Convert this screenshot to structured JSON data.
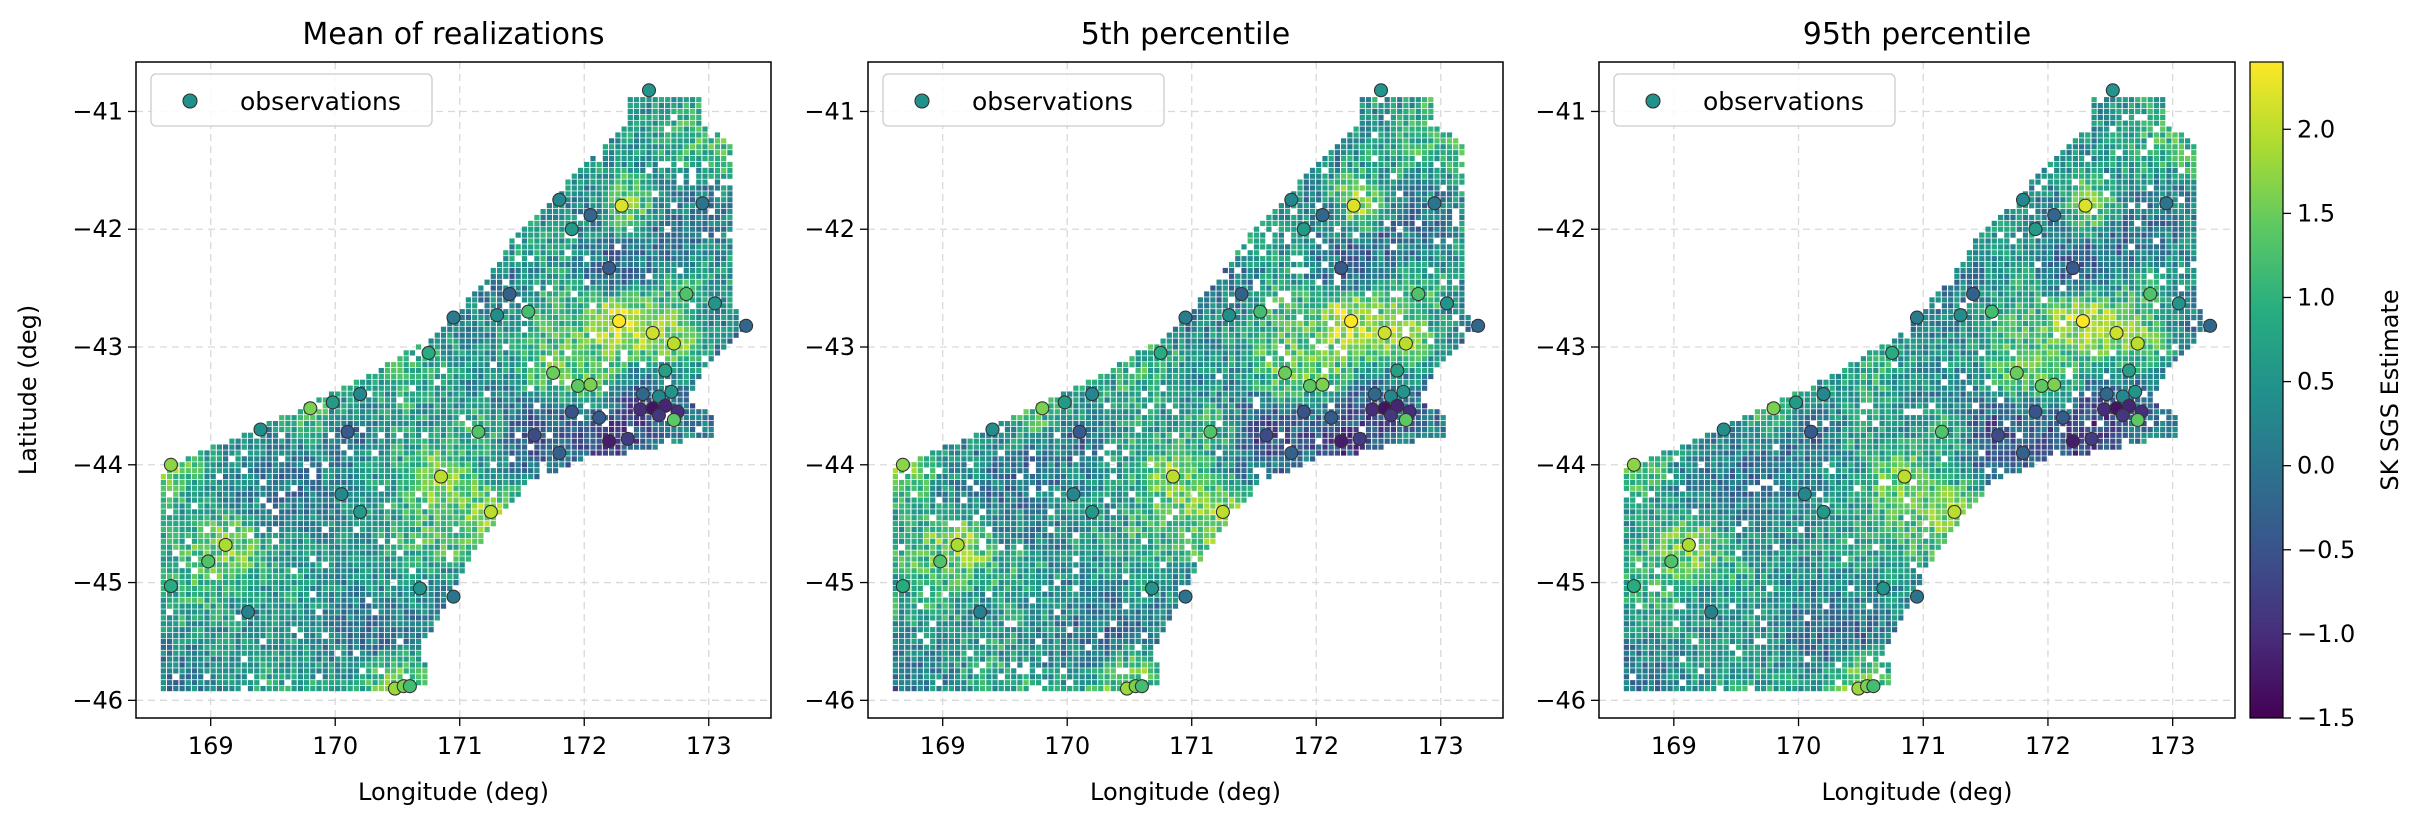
{
  "chart_data": [
    {
      "type": "scatter",
      "title": "Mean of realizations",
      "xlabel": "Longitude (deg)",
      "ylabel": "Latitude (deg)",
      "xlim": [
        168.4,
        173.5
      ],
      "ylim": [
        -46.15,
        -40.58
      ],
      "xticks": [
        "169",
        "170",
        "171",
        "172",
        "173"
      ],
      "yticks": [
        "−41",
        "−42",
        "−43",
        "−44",
        "−45",
        "−46"
      ],
      "grid": true,
      "legend": {
        "label": "observations",
        "placement": "upper-left"
      },
      "seed": 11
    },
    {
      "type": "scatter",
      "title": "5th percentile",
      "xlabel": "Longitude (deg)",
      "ylabel": "",
      "xlim": [
        168.4,
        173.5
      ],
      "ylim": [
        -46.15,
        -40.58
      ],
      "xticks": [
        "169",
        "170",
        "171",
        "172",
        "173"
      ],
      "yticks": [
        "−41",
        "−42",
        "−43",
        "−44",
        "−45",
        "−46"
      ],
      "grid": true,
      "legend": {
        "label": "observations",
        "placement": "upper-left"
      },
      "seed": 23
    },
    {
      "type": "scatter",
      "title": "95th percentile",
      "xlabel": "Longitude (deg)",
      "ylabel": "",
      "xlim": [
        168.4,
        173.5
      ],
      "ylim": [
        -46.15,
        -40.58
      ],
      "xticks": [
        "169",
        "170",
        "171",
        "172",
        "173"
      ],
      "yticks": [
        "−41",
        "−42",
        "−43",
        "−44",
        "−45",
        "−46"
      ],
      "grid": true,
      "legend": {
        "label": "observations",
        "placement": "upper-left"
      },
      "seed": 37
    }
  ],
  "observations": [
    {
      "lon": 172.52,
      "lat": -40.82,
      "v": 0.5
    },
    {
      "lon": 171.8,
      "lat": -41.75,
      "v": 0.3
    },
    {
      "lon": 171.9,
      "lat": -42.0,
      "v": 0.6
    },
    {
      "lon": 172.3,
      "lat": -41.8,
      "v": 2.2
    },
    {
      "lon": 172.05,
      "lat": -41.88,
      "v": -0.2
    },
    {
      "lon": 172.95,
      "lat": -41.78,
      "v": 0.0
    },
    {
      "lon": 172.2,
      "lat": -42.33,
      "v": -0.4
    },
    {
      "lon": 171.4,
      "lat": -42.55,
      "v": -0.3
    },
    {
      "lon": 171.55,
      "lat": -42.7,
      "v": 1.2
    },
    {
      "lon": 171.3,
      "lat": -42.73,
      "v": 0.4
    },
    {
      "lon": 170.95,
      "lat": -42.75,
      "v": 0.1
    },
    {
      "lon": 170.75,
      "lat": -43.05,
      "v": 0.9
    },
    {
      "lon": 172.82,
      "lat": -42.55,
      "v": 1.3
    },
    {
      "lon": 173.05,
      "lat": -42.63,
      "v": 0.5
    },
    {
      "lon": 173.3,
      "lat": -42.82,
      "v": -0.2
    },
    {
      "lon": 172.28,
      "lat": -42.78,
      "v": 2.4
    },
    {
      "lon": 172.55,
      "lat": -42.88,
      "v": 2.1
    },
    {
      "lon": 172.72,
      "lat": -42.97,
      "v": 2.0
    },
    {
      "lon": 172.65,
      "lat": -43.2,
      "v": 0.7
    },
    {
      "lon": 171.75,
      "lat": -43.22,
      "v": 1.5
    },
    {
      "lon": 171.95,
      "lat": -43.33,
      "v": 1.4
    },
    {
      "lon": 172.05,
      "lat": -43.32,
      "v": 1.6
    },
    {
      "lon": 171.9,
      "lat": -43.55,
      "v": -0.5
    },
    {
      "lon": 172.12,
      "lat": -43.6,
      "v": -0.4
    },
    {
      "lon": 172.47,
      "lat": -43.4,
      "v": -0.2
    },
    {
      "lon": 172.6,
      "lat": -43.42,
      "v": 0.3
    },
    {
      "lon": 172.7,
      "lat": -43.38,
      "v": 0.5
    },
    {
      "lon": 172.45,
      "lat": -43.53,
      "v": -1.0
    },
    {
      "lon": 172.55,
      "lat": -43.52,
      "v": -1.3
    },
    {
      "lon": 172.65,
      "lat": -43.5,
      "v": -1.1
    },
    {
      "lon": 172.75,
      "lat": -43.55,
      "v": -1.0
    },
    {
      "lon": 172.6,
      "lat": -43.58,
      "v": -0.9
    },
    {
      "lon": 172.72,
      "lat": -43.62,
      "v": 1.4
    },
    {
      "lon": 172.2,
      "lat": -43.8,
      "v": -1.2
    },
    {
      "lon": 172.35,
      "lat": -43.78,
      "v": -0.8
    },
    {
      "lon": 171.8,
      "lat": -43.9,
      "v": -0.3
    },
    {
      "lon": 171.6,
      "lat": -43.75,
      "v": -0.6
    },
    {
      "lon": 171.15,
      "lat": -43.72,
      "v": 1.3
    },
    {
      "lon": 170.85,
      "lat": -44.1,
      "v": 2.0
    },
    {
      "lon": 171.25,
      "lat": -44.4,
      "v": 2.0
    },
    {
      "lon": 170.1,
      "lat": -43.72,
      "v": -0.4
    },
    {
      "lon": 169.8,
      "lat": -43.52,
      "v": 1.6
    },
    {
      "lon": 169.98,
      "lat": -43.47,
      "v": 0.6
    },
    {
      "lon": 169.4,
      "lat": -43.7,
      "v": 0.4
    },
    {
      "lon": 170.2,
      "lat": -43.4,
      "v": 0.3
    },
    {
      "lon": 170.05,
      "lat": -44.25,
      "v": 0.3
    },
    {
      "lon": 170.2,
      "lat": -44.4,
      "v": 0.6
    },
    {
      "lon": 168.68,
      "lat": -44.0,
      "v": 1.7
    },
    {
      "lon": 169.12,
      "lat": -44.68,
      "v": 1.9
    },
    {
      "lon": 168.98,
      "lat": -44.82,
      "v": 1.3
    },
    {
      "lon": 169.3,
      "lat": -45.25,
      "v": 0.2
    },
    {
      "lon": 168.68,
      "lat": -45.03,
      "v": 0.9
    },
    {
      "lon": 170.68,
      "lat": -45.05,
      "v": 0.5
    },
    {
      "lon": 170.95,
      "lat": -45.12,
      "v": 0.0
    },
    {
      "lon": 170.48,
      "lat": -45.9,
      "v": 1.8
    },
    {
      "lon": 170.55,
      "lat": -45.88,
      "v": 1.6
    },
    {
      "lon": 170.6,
      "lat": -45.88,
      "v": 1.2
    }
  ],
  "colorbar": {
    "label": "SK SGS Estimate",
    "vmin": -1.5,
    "vmax": 2.4,
    "ticks": [
      "2.0",
      "1.5",
      "1.0",
      "0.5",
      "0.0",
      "−0.5",
      "−1.0",
      "−1.5"
    ],
    "colormap": "viridis"
  }
}
